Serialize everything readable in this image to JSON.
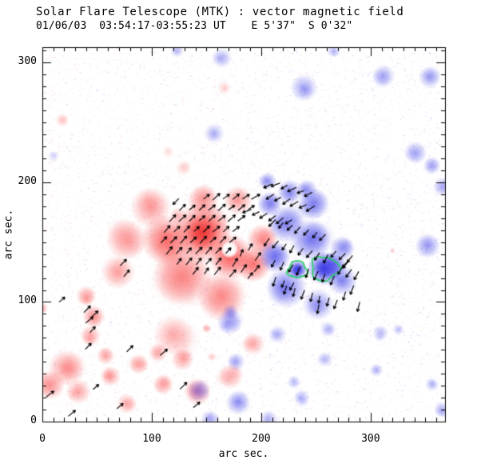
{
  "window": {
    "background": "#ffffff"
  },
  "chart_data": {
    "type": "heatmap",
    "title": "Solar Flare Telescope (MTK) : vector magnetic field",
    "subtitle": "01/06/03  03:54:17-03:55:23 UT    E 5'37\"  S 0'32\"",
    "xlabel": "arc sec.",
    "ylabel": "arc sec.",
    "xlim": [
      0,
      368
    ],
    "ylim": [
      0,
      313
    ],
    "x_major_ticks": [
      0,
      100,
      200,
      300
    ],
    "y_major_ticks": [
      0,
      100,
      200,
      300
    ],
    "minor_tick_step": 10,
    "grid": false,
    "legend": "none",
    "colors": {
      "positive_red": "250,85,85",
      "positive_red_core": "235,55,55",
      "negative_blue": "80,80,235",
      "negative_blue_core": "55,55,225",
      "contour_green": "#1fd45a",
      "axis": "#000000",
      "noise_red": "250,140,140",
      "noise_blue": "130,130,245"
    },
    "red_blobs": [
      [
        146,
        158,
        26,
        0.95
      ],
      [
        113,
        152,
        22,
        0.8
      ],
      [
        172,
        138,
        20,
        0.8
      ],
      [
        128,
        122,
        26,
        0.6
      ],
      [
        164,
        105,
        22,
        0.55
      ],
      [
        99,
        179,
        18,
        0.5
      ],
      [
        147,
        185,
        14,
        0.5
      ],
      [
        77,
        152,
        18,
        0.5
      ],
      [
        69,
        125,
        15,
        0.45
      ],
      [
        120,
        72,
        18,
        0.4
      ],
      [
        193,
        132,
        16,
        0.7
      ],
      [
        179,
        185,
        13,
        0.5
      ],
      [
        201,
        152,
        14,
        0.6
      ],
      [
        40,
        105,
        9,
        0.5
      ],
      [
        47,
        88,
        10,
        0.5
      ],
      [
        44,
        72,
        9,
        0.45
      ],
      [
        58,
        55,
        8,
        0.4
      ],
      [
        22,
        45,
        16,
        0.55
      ],
      [
        7,
        31,
        13,
        0.5
      ],
      [
        33,
        25,
        11,
        0.45
      ],
      [
        62,
        38,
        9,
        0.5
      ],
      [
        88,
        48,
        9,
        0.45
      ],
      [
        106,
        58,
        8,
        0.4
      ],
      [
        128,
        52,
        10,
        0.45
      ],
      [
        142,
        25,
        12,
        0.5
      ],
      [
        172,
        38,
        11,
        0.45
      ],
      [
        193,
        65,
        10,
        0.4
      ],
      [
        110,
        31,
        9,
        0.45
      ],
      [
        77,
        15,
        9,
        0.4
      ],
      [
        18,
        252,
        6,
        0.25
      ],
      [
        166,
        279,
        6,
        0.2
      ],
      [
        124,
        172,
        8,
        0.3
      ],
      [
        150,
        78,
        4,
        0.35
      ],
      [
        115,
        225,
        5,
        0.15
      ],
      [
        129,
        212,
        7,
        0.2
      ],
      [
        0,
        95,
        5,
        0.4
      ],
      [
        320,
        143,
        3,
        0.2
      ],
      [
        155,
        54,
        4,
        0.2
      ]
    ],
    "blue_blobs": [
      [
        258,
        128,
        15,
        0.95
      ],
      [
        233,
        127,
        9,
        0.9
      ],
      [
        245,
        152,
        18,
        0.7
      ],
      [
        223,
        165,
        16,
        0.65
      ],
      [
        248,
        182,
        14,
        0.6
      ],
      [
        226,
        192,
        11,
        0.55
      ],
      [
        208,
        182,
        11,
        0.6
      ],
      [
        212,
        138,
        14,
        0.7
      ],
      [
        223,
        112,
        18,
        0.65
      ],
      [
        252,
        98,
        14,
        0.5
      ],
      [
        274,
        118,
        13,
        0.6
      ],
      [
        274,
        145,
        11,
        0.55
      ],
      [
        206,
        201,
        8,
        0.5
      ],
      [
        242,
        194,
        9,
        0.5
      ],
      [
        266,
        131,
        12,
        0.6
      ],
      [
        123,
        310,
        6,
        0.3
      ],
      [
        164,
        304,
        9,
        0.35
      ],
      [
        157,
        241,
        9,
        0.35
      ],
      [
        10,
        222,
        5,
        0.2
      ],
      [
        239,
        279,
        12,
        0.45
      ],
      [
        312,
        289,
        10,
        0.4
      ],
      [
        354,
        288,
        10,
        0.45
      ],
      [
        266,
        310,
        6,
        0.3
      ],
      [
        341,
        225,
        10,
        0.4
      ],
      [
        356,
        214,
        8,
        0.4
      ],
      [
        366,
        197,
        8,
        0.4
      ],
      [
        352,
        147,
        11,
        0.45
      ],
      [
        171,
        83,
        11,
        0.5
      ],
      [
        172,
        92,
        7,
        0.35
      ],
      [
        177,
        50,
        8,
        0.4
      ],
      [
        179,
        16,
        11,
        0.5
      ],
      [
        143,
        26,
        10,
        0.4
      ],
      [
        153,
        2,
        8,
        0.4
      ],
      [
        215,
        73,
        8,
        0.35
      ],
      [
        261,
        77,
        7,
        0.3
      ],
      [
        309,
        74,
        7,
        0.3
      ],
      [
        305,
        43,
        6,
        0.3
      ],
      [
        230,
        33,
        6,
        0.3
      ],
      [
        237,
        20,
        7,
        0.35
      ],
      [
        356,
        31,
        6,
        0.35
      ],
      [
        365,
        10,
        7,
        0.4
      ],
      [
        207,
        2,
        8,
        0.35
      ],
      [
        258,
        52,
        7,
        0.3
      ],
      [
        325,
        77,
        5,
        0.25
      ]
    ],
    "white_holes": [
      [
        174,
        166,
        3.5,
        0
      ],
      [
        171,
        144,
        4.5,
        1
      ]
    ],
    "green_contours": [
      [
        233,
        127,
        8
      ],
      [
        258,
        128,
        11.5
      ]
    ],
    "arrow_length_arcsec": 8,
    "arrows": [
      [
        150,
        188,
        38
      ],
      [
        159,
        188,
        42
      ],
      [
        168,
        188,
        35
      ],
      [
        177,
        188,
        40
      ],
      [
        186,
        188,
        32
      ],
      [
        195,
        188,
        30
      ],
      [
        128,
        179,
        45
      ],
      [
        137,
        179,
        40
      ],
      [
        146,
        179,
        44
      ],
      [
        155,
        179,
        38
      ],
      [
        164,
        179,
        42
      ],
      [
        173,
        179,
        36
      ],
      [
        182,
        179,
        40
      ],
      [
        191,
        179,
        33
      ],
      [
        119,
        170,
        48
      ],
      [
        128,
        170,
        42
      ],
      [
        137,
        170,
        45
      ],
      [
        146,
        170,
        40
      ],
      [
        155,
        170,
        43
      ],
      [
        164,
        170,
        38
      ],
      [
        173,
        170,
        42
      ],
      [
        182,
        170,
        36
      ],
      [
        114,
        161,
        50
      ],
      [
        123,
        161,
        44
      ],
      [
        132,
        161,
        47
      ],
      [
        141,
        161,
        42
      ],
      [
        150,
        161,
        45
      ],
      [
        159,
        161,
        40
      ],
      [
        168,
        161,
        44
      ],
      [
        177,
        161,
        38
      ],
      [
        111,
        152,
        48
      ],
      [
        120,
        152,
        45
      ],
      [
        129,
        152,
        50
      ],
      [
        138,
        152,
        44
      ],
      [
        147,
        152,
        47
      ],
      [
        156,
        152,
        42
      ],
      [
        165,
        152,
        46
      ],
      [
        174,
        152,
        40
      ],
      [
        116,
        143,
        52
      ],
      [
        125,
        143,
        47
      ],
      [
        134,
        143,
        50
      ],
      [
        143,
        143,
        45
      ],
      [
        152,
        143,
        48
      ],
      [
        161,
        143,
        44
      ],
      [
        170,
        143,
        47
      ],
      [
        125,
        134,
        55
      ],
      [
        134,
        134,
        50
      ],
      [
        143,
        134,
        53
      ],
      [
        152,
        134,
        48
      ],
      [
        161,
        134,
        52
      ],
      [
        140,
        126,
        52
      ],
      [
        150,
        126,
        55
      ],
      [
        160,
        126,
        50
      ],
      [
        122,
        184,
        225
      ],
      [
        176,
        133,
        60
      ],
      [
        184,
        128,
        55
      ],
      [
        190,
        122,
        52
      ],
      [
        182,
        141,
        68
      ],
      [
        190,
        146,
        60
      ],
      [
        197,
        138,
        55
      ],
      [
        174,
        124,
        48
      ],
      [
        196,
        128,
        50
      ],
      [
        206,
        197,
        205
      ],
      [
        213,
        198,
        200
      ],
      [
        221,
        196,
        210
      ],
      [
        228,
        194,
        205
      ],
      [
        236,
        192,
        200
      ],
      [
        243,
        190,
        207
      ],
      [
        208,
        188,
        214
      ],
      [
        215,
        186,
        209
      ],
      [
        223,
        184,
        216
      ],
      [
        230,
        182,
        210
      ],
      [
        238,
        180,
        204
      ],
      [
        245,
        178,
        211
      ],
      [
        187,
        176,
        200
      ],
      [
        195,
        174,
        206
      ],
      [
        202,
        172,
        212
      ],
      [
        210,
        170,
        217
      ],
      [
        217,
        168,
        221
      ],
      [
        225,
        167,
        212
      ],
      [
        210,
        166,
        226
      ],
      [
        218,
        164,
        231
      ],
      [
        226,
        162,
        224
      ],
      [
        233,
        160,
        230
      ],
      [
        241,
        158,
        226
      ],
      [
        249,
        156,
        232
      ],
      [
        256,
        154,
        225
      ],
      [
        205,
        150,
        236
      ],
      [
        213,
        148,
        229
      ],
      [
        221,
        146,
        236
      ],
      [
        228,
        144,
        241
      ],
      [
        236,
        142,
        234
      ],
      [
        244,
        140,
        229
      ],
      [
        251,
        138,
        236
      ],
      [
        259,
        136,
        241
      ],
      [
        266,
        140,
        229
      ],
      [
        274,
        138,
        224
      ],
      [
        281,
        136,
        231
      ],
      [
        277,
        132,
        228
      ],
      [
        211,
        132,
        241
      ],
      [
        219,
        130,
        246
      ],
      [
        227,
        128,
        239
      ],
      [
        234,
        126,
        246
      ],
      [
        242,
        124,
        251
      ],
      [
        250,
        122,
        244
      ],
      [
        257,
        120,
        251
      ],
      [
        265,
        118,
        246
      ],
      [
        272,
        126,
        239
      ],
      [
        280,
        124,
        234
      ],
      [
        287,
        122,
        241
      ],
      [
        212,
        117,
        251
      ],
      [
        220,
        115,
        246
      ],
      [
        228,
        113,
        241
      ],
      [
        222,
        110,
        251
      ],
      [
        230,
        108,
        256
      ],
      [
        238,
        106,
        249
      ],
      [
        246,
        104,
        256
      ],
      [
        253,
        102,
        261
      ],
      [
        261,
        100,
        254
      ],
      [
        268,
        98,
        249
      ],
      [
        252,
        94,
        259
      ],
      [
        276,
        105,
        254
      ],
      [
        283,
        110,
        249
      ],
      [
        289,
        96,
        256
      ],
      [
        277,
        131,
        230
      ],
      [
        74,
        133,
        45
      ],
      [
        77,
        124,
        50
      ],
      [
        18,
        102,
        40
      ],
      [
        41,
        94,
        45
      ],
      [
        48,
        90,
        44
      ],
      [
        43,
        85,
        40
      ],
      [
        46,
        77,
        48
      ],
      [
        42,
        63,
        45
      ],
      [
        111,
        58,
        40
      ],
      [
        80,
        61,
        45
      ],
      [
        49,
        29,
        40
      ],
      [
        129,
        30,
        45
      ],
      [
        27,
        7,
        40
      ],
      [
        71,
        13,
        40
      ],
      [
        141,
        14,
        40
      ],
      [
        7,
        23,
        38
      ]
    ]
  }
}
